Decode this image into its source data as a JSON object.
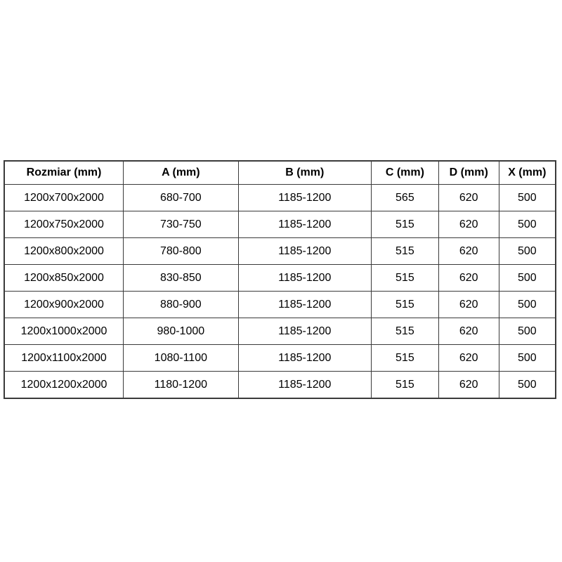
{
  "page": {
    "background_color": "#ffffff",
    "border_color": "#3a3a3a",
    "text_color": "#000000"
  },
  "chart_data": {
    "type": "table",
    "title": "",
    "columns": [
      "Rozmiar (mm)",
      "A (mm)",
      "B (mm)",
      "C (mm)",
      "D (mm)",
      "X (mm)"
    ],
    "rows": [
      [
        "1200x700x2000",
        "680-700",
        "1185-1200",
        "565",
        "620",
        "500"
      ],
      [
        "1200x750x2000",
        "730-750",
        "1185-1200",
        "515",
        "620",
        "500"
      ],
      [
        "1200x800x2000",
        "780-800",
        "1185-1200",
        "515",
        "620",
        "500"
      ],
      [
        "1200x850x2000",
        "830-850",
        "1185-1200",
        "515",
        "620",
        "500"
      ],
      [
        "1200x900x2000",
        "880-900",
        "1185-1200",
        "515",
        "620",
        "500"
      ],
      [
        "1200x1000x2000",
        "980-1000",
        "1185-1200",
        "515",
        "620",
        "500"
      ],
      [
        "1200x1100x2000",
        "1080-1100",
        "1185-1200",
        "515",
        "620",
        "500"
      ],
      [
        "1200x1200x2000",
        "1180-1200",
        "1185-1200",
        "515",
        "620",
        "500"
      ]
    ]
  }
}
